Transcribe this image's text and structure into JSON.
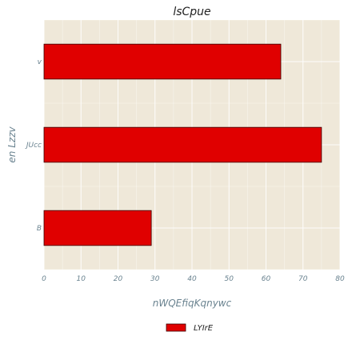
{
  "chart_data": {
    "type": "bar",
    "orientation": "horizontal",
    "title": "lsCpue",
    "xlabel": "nWQEfiqKqnywc",
    "ylabel": "en Lzzv",
    "categories": [
      "B",
      "JUcc",
      "v"
    ],
    "series": [
      {
        "name": "LYIrE",
        "values": [
          29,
          75,
          64
        ]
      }
    ],
    "xlim": [
      0,
      80
    ],
    "xticks": [
      0,
      10,
      20,
      30,
      40,
      50,
      60,
      70,
      80
    ],
    "grid": true,
    "legend_position": "bottom-center",
    "colors": {
      "bar": "#e00000",
      "bar_edge": "#3a0000",
      "plot_background": "#efe8d9",
      "grid": "#ffffff"
    }
  }
}
